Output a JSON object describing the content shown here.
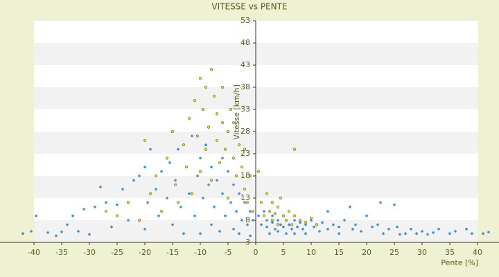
{
  "chart_data": {
    "type": "scatter",
    "title": "VITESSE vs PENTE",
    "x_label": "Pente [%]",
    "y_label": "Vitesse [km/h]",
    "xlim": [
      -42,
      43
    ],
    "xticks": [
      -40,
      -35,
      -30,
      -25,
      -20,
      -15,
      -10,
      -5,
      0,
      5,
      10,
      15,
      20,
      25,
      30,
      35,
      40
    ],
    "ylim": [
      3,
      53
    ],
    "yticks": [
      3,
      8,
      13,
      18,
      23,
      28,
      33,
      38,
      43,
      48,
      53
    ],
    "grid": "bands",
    "series": [
      {
        "color": "#3b8fda",
        "x": [
          -42,
          -40.5,
          -39.6,
          -37.5,
          -36,
          -35,
          -34,
          -33,
          -32,
          -31,
          -30,
          -29,
          -28,
          -27,
          -26,
          -25,
          -24,
          -23,
          -22,
          -21,
          -20,
          -20,
          -19.5,
          -19,
          -18,
          -17.5,
          -17,
          -16,
          -15.5,
          -15,
          -14.5,
          -14,
          -13.5,
          -13,
          -12.5,
          -12,
          -11.5,
          -11,
          -10.5,
          -10,
          -10,
          -9.5,
          -9,
          -8.5,
          -8,
          -8,
          -7.5,
          -7,
          -6.5,
          -6,
          -6,
          -5.5,
          -5,
          -4.5,
          -4,
          -4,
          -3.5,
          -3,
          -3,
          -2.5,
          -2,
          -1.5,
          -1,
          -1,
          -0.5,
          0.5,
          1,
          1.5,
          2,
          2,
          2.5,
          3,
          3,
          3.5,
          4,
          4,
          4.5,
          5,
          5,
          5.5,
          6,
          6.5,
          7,
          7,
          7.5,
          8,
          8.5,
          9,
          9,
          10,
          10.5,
          11,
          11.5,
          12,
          13,
          13,
          14,
          15,
          15,
          16,
          17,
          17.5,
          18,
          19,
          20,
          21,
          22,
          22.5,
          23,
          24,
          25,
          25.5,
          26,
          27,
          28,
          29,
          30,
          31,
          32,
          33,
          35,
          36,
          38,
          39,
          41,
          42
        ],
        "values": [
          5,
          5.5,
          9,
          5.2,
          4.5,
          5.4,
          7,
          9,
          5.5,
          10.5,
          4.8,
          11,
          15.5,
          12,
          6.5,
          11.5,
          15,
          8,
          17,
          18,
          20,
          6,
          12,
          24,
          15,
          9,
          19,
          13,
          21,
          7,
          17,
          24,
          11,
          5,
          20,
          14,
          27,
          9,
          18,
          22,
          5,
          13,
          25,
          16,
          7,
          20,
          11,
          17,
          5.5,
          14,
          22,
          9,
          19,
          12,
          6,
          16,
          10,
          14,
          5,
          8,
          12,
          7,
          10,
          4.5,
          8,
          9,
          7,
          10,
          6.5,
          8,
          5,
          7.5,
          9,
          6,
          8,
          5.5,
          7,
          6.5,
          9,
          5,
          7,
          6,
          8,
          5,
          6.5,
          7.5,
          6,
          7,
          5,
          8,
          6.5,
          7,
          5.5,
          7.5,
          6,
          10,
          7,
          6.5,
          5,
          8,
          11,
          6,
          7,
          5.5,
          9,
          6.5,
          7,
          12,
          5,
          6,
          11.5,
          6.5,
          4.8,
          5,
          6,
          5,
          5.5,
          4.8,
          5.2,
          6,
          5,
          5.5,
          6,
          5,
          5,
          5.3
        ]
      },
      {
        "color": "#d9d84a",
        "x": [
          -27,
          -25,
          -23,
          -21,
          -20,
          -19,
          -18,
          -17,
          -16,
          -15,
          -14.5,
          -14,
          -13,
          -12.5,
          -12,
          -11.5,
          -11,
          -10.5,
          -10,
          -10,
          -9.5,
          -9,
          -9,
          -8.5,
          -8,
          -8,
          -7.5,
          -7,
          -7,
          -6.5,
          -6,
          -6,
          -5.5,
          -5,
          -5,
          -4.5,
          -4,
          -4,
          -3.5,
          -3,
          -2.5,
          -2,
          -2,
          -1.5,
          -1,
          -0.5,
          0.5,
          1,
          1.5,
          2,
          2.5,
          3,
          3,
          3.5,
          4,
          4,
          4.5,
          5,
          5.5,
          6,
          6.5,
          7,
          7,
          8,
          9,
          10,
          11
        ],
        "values": [
          10,
          9,
          12,
          8,
          26,
          14,
          18,
          10,
          22,
          28,
          16,
          12,
          25,
          20,
          31,
          14,
          35,
          27,
          40,
          19,
          33,
          24,
          38,
          29,
          42,
          17,
          36,
          26,
          32,
          21,
          30,
          38,
          24,
          28,
          13,
          33,
          22,
          30,
          18,
          25,
          20,
          15,
          24,
          12,
          18,
          10,
          19,
          12,
          9,
          14,
          10,
          8,
          12,
          9.5,
          11,
          7,
          13,
          9,
          8,
          10,
          7,
          24,
          9,
          8,
          7.5,
          8.5,
          7
        ]
      }
    ]
  }
}
